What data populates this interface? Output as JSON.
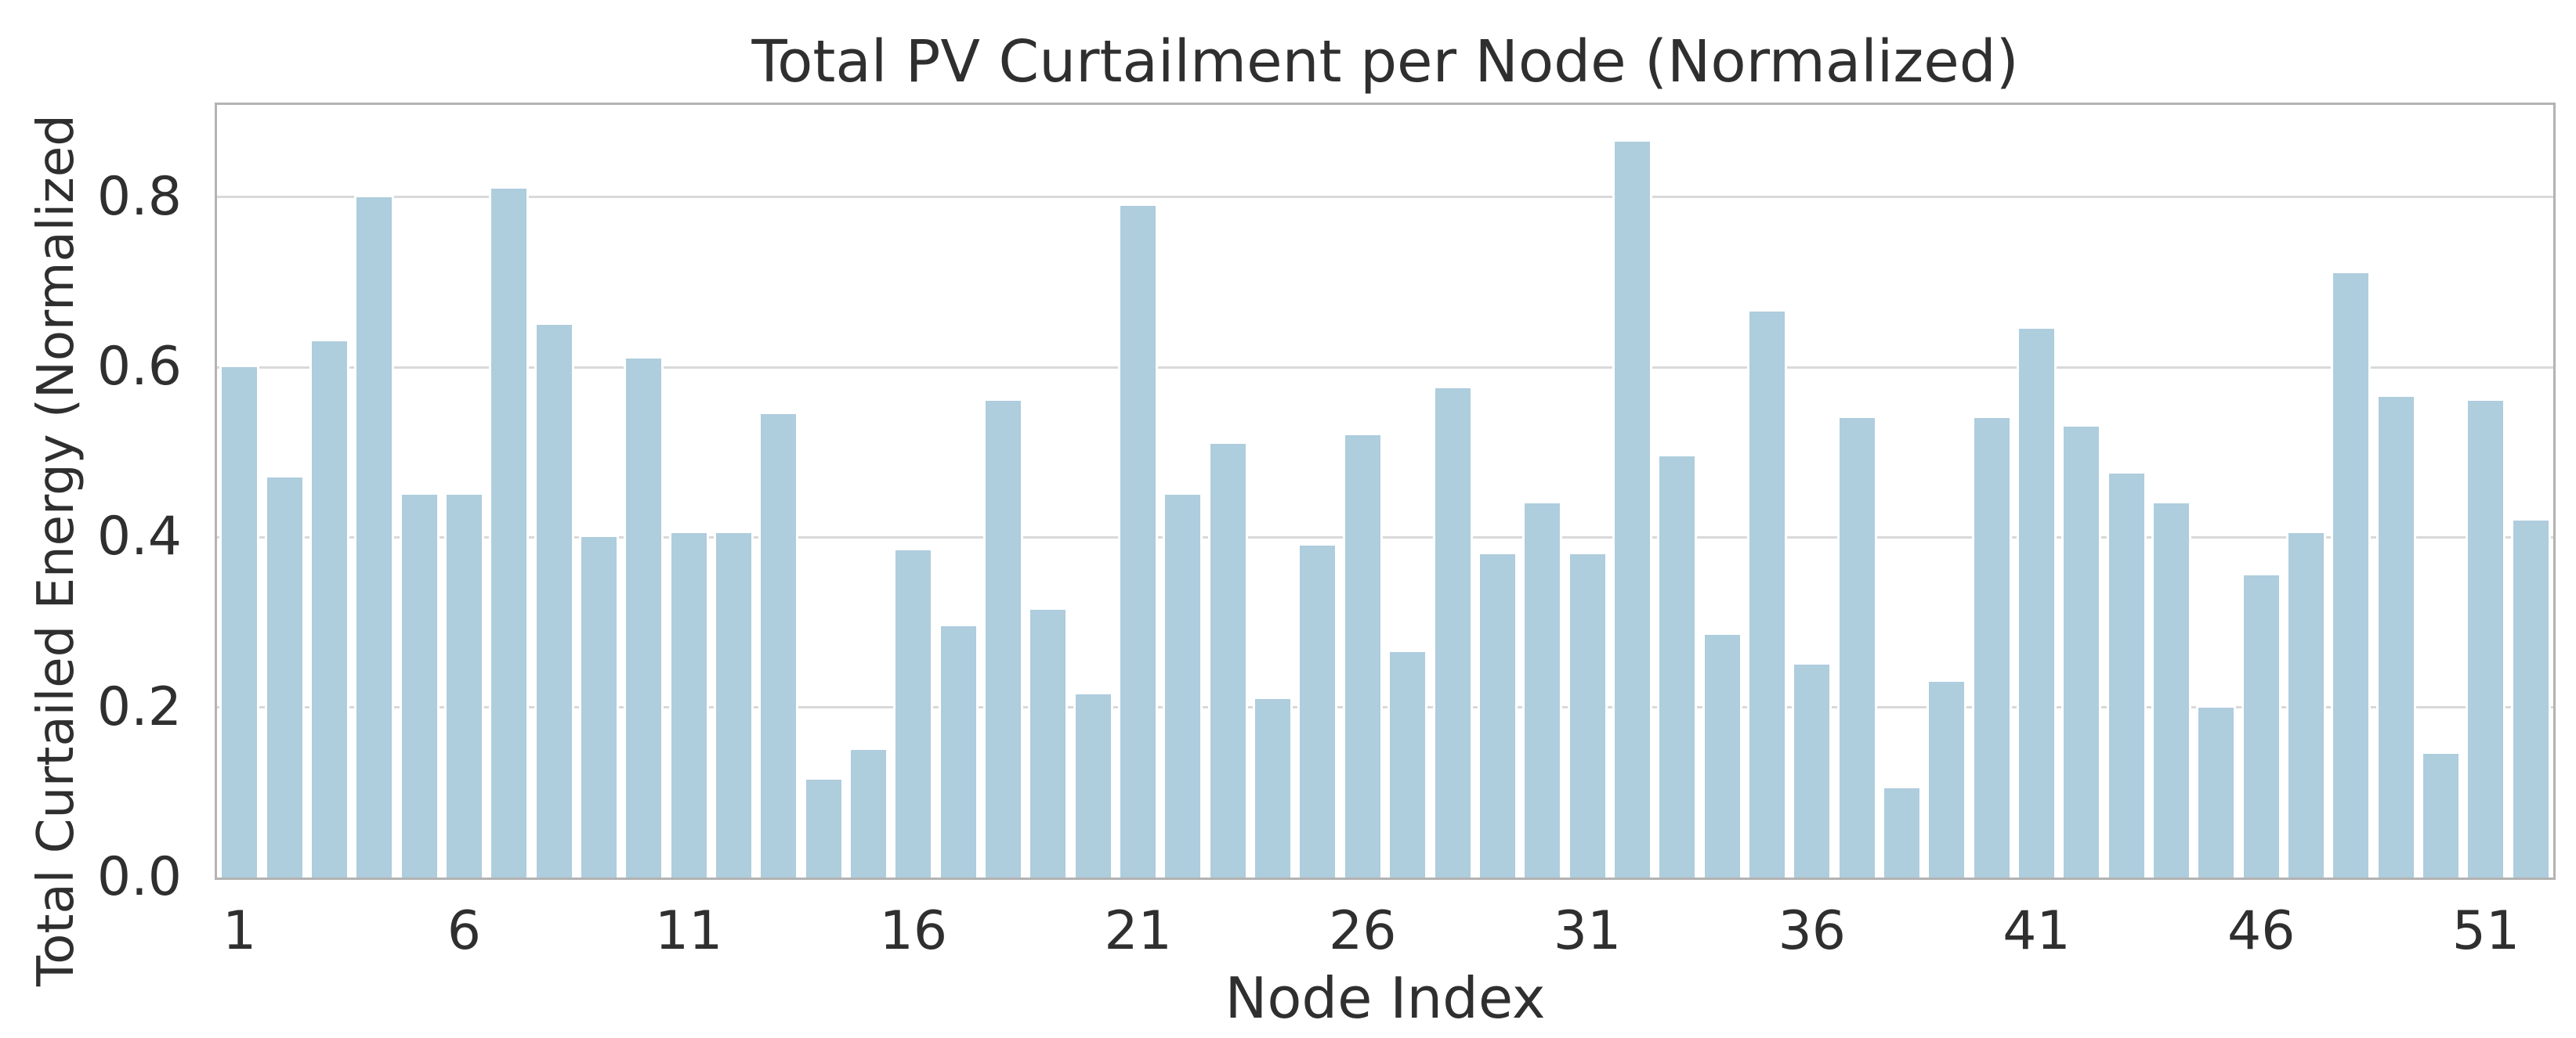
{
  "chart_data": {
    "type": "bar",
    "title": "Total PV Curtailment per Node (Normalized)",
    "xlabel": "Node Index",
    "ylabel": "Total Curtailed Energy (Normalized",
    "categories": [
      1,
      2,
      3,
      4,
      5,
      6,
      7,
      8,
      9,
      10,
      11,
      12,
      13,
      14,
      15,
      16,
      17,
      18,
      19,
      20,
      21,
      22,
      23,
      24,
      25,
      26,
      27,
      28,
      29,
      30,
      31,
      32,
      33,
      34,
      35,
      36,
      37,
      38,
      39,
      40,
      41,
      42,
      43,
      44,
      45,
      46,
      47,
      48,
      49,
      50,
      51,
      52
    ],
    "values": [
      0.6,
      0.47,
      0.63,
      0.8,
      0.45,
      0.45,
      0.81,
      0.65,
      0.4,
      0.61,
      0.405,
      0.405,
      0.545,
      0.115,
      0.15,
      0.385,
      0.295,
      0.56,
      0.315,
      0.215,
      0.79,
      0.45,
      0.51,
      0.21,
      0.39,
      0.52,
      0.265,
      0.575,
      0.38,
      0.44,
      0.38,
      0.865,
      0.495,
      0.285,
      0.665,
      0.25,
      0.54,
      0.105,
      0.23,
      0.54,
      0.645,
      0.53,
      0.475,
      0.44,
      0.2,
      0.355,
      0.405,
      0.71,
      0.565,
      0.145,
      0.56,
      0.42
    ],
    "xtick_labels": [
      "1",
      "6",
      "11",
      "16",
      "21",
      "26",
      "31",
      "36",
      "41",
      "46",
      "51"
    ],
    "xtick_positions": [
      1,
      6,
      11,
      16,
      21,
      26,
      31,
      36,
      41,
      46,
      51
    ],
    "ytick_labels": [
      "0.0",
      "0.2",
      "0.4",
      "0.6",
      "0.8"
    ],
    "ytick_values": [
      0.0,
      0.2,
      0.4,
      0.6,
      0.8
    ],
    "ylim": [
      0,
      0.9083
    ],
    "grid": "horizontal-solid-under-bars",
    "legend": "none",
    "colors": {
      "bar_fill": "#aecddd",
      "bar_edge": "#ffffff",
      "gridline": "#d9d9d9",
      "spine": "#b3b3b3",
      "text": "#2f2f2f",
      "background": "#ffffff"
    }
  }
}
